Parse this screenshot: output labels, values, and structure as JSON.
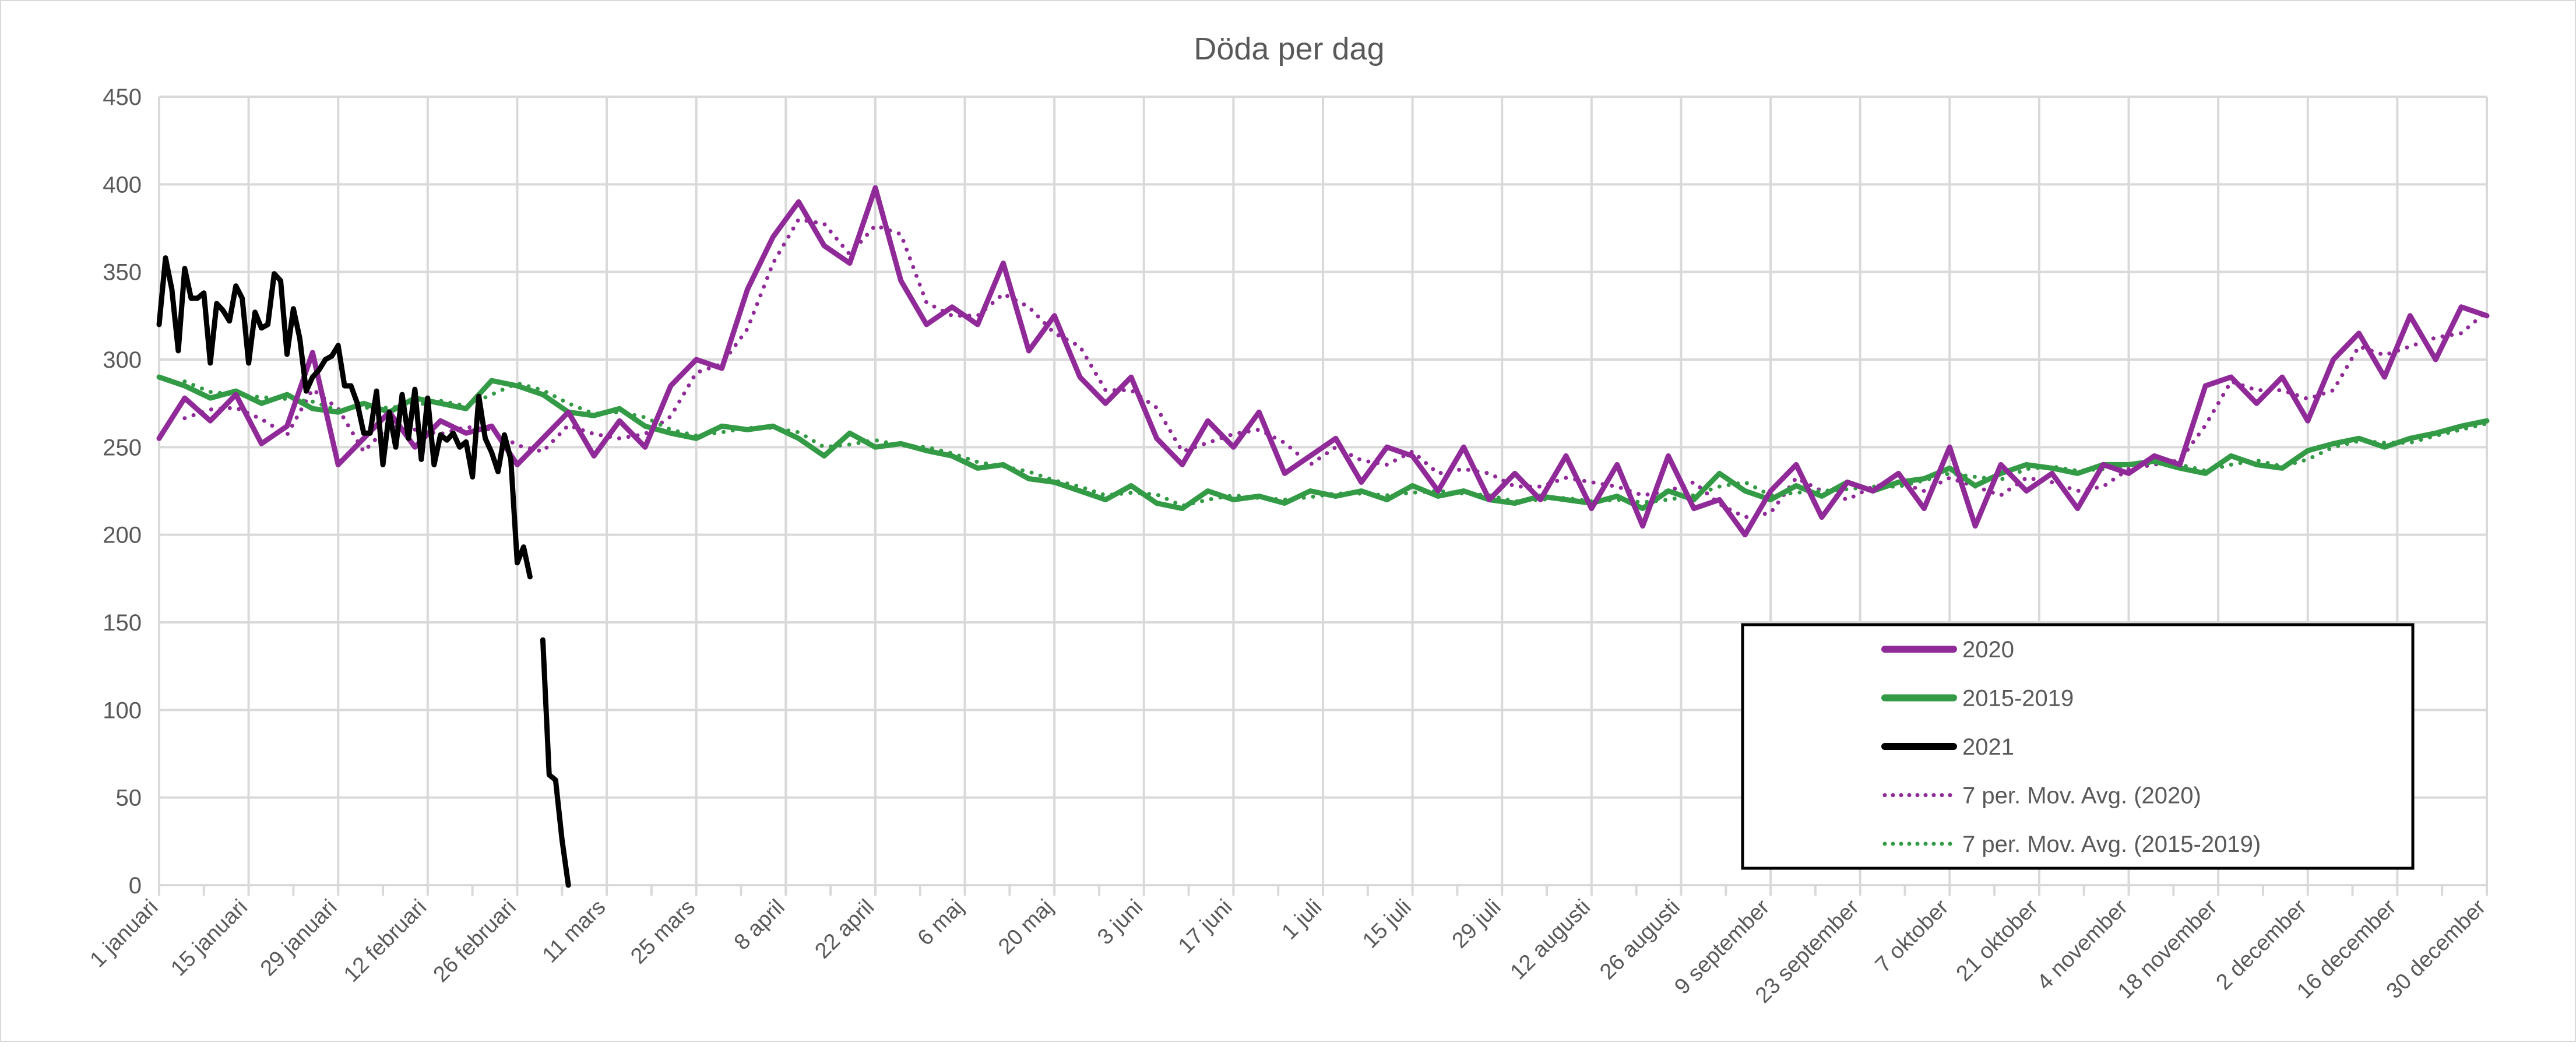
{
  "chart_data": {
    "type": "line",
    "title": "Döda per dag",
    "xlabel": "",
    "ylabel": "",
    "ylim": [
      0,
      450
    ],
    "y_ticks": [
      0,
      50,
      100,
      150,
      200,
      250,
      300,
      350,
      400,
      450
    ],
    "x_tick_labels": [
      "1 januari",
      "15 januari",
      "29 januari",
      "12 februari",
      "26 februari",
      "11 mars",
      "25 mars",
      "8 april",
      "22 april",
      "6 maj",
      "20 maj",
      "3 juni",
      "17 juni",
      "1 juli",
      "15 juli",
      "29 juli",
      "12 augusti",
      "26 augusti",
      "9 september",
      "23 september",
      "7 oktober",
      "21 oktober",
      "4 november",
      "18 november",
      "2 december",
      "16 december",
      "30 december"
    ],
    "grid": true,
    "legend_position": "bottom-right",
    "x": [
      "01-01",
      "01-05",
      "01-09",
      "01-13",
      "01-17",
      "01-21",
      "01-25",
      "01-29",
      "02-02",
      "02-06",
      "02-10",
      "02-14",
      "02-18",
      "02-22",
      "02-26",
      "03-01",
      "03-05",
      "03-09",
      "03-13",
      "03-17",
      "03-21",
      "03-25",
      "03-29",
      "04-02",
      "04-06",
      "04-10",
      "04-14",
      "04-18",
      "04-22",
      "04-26",
      "04-30",
      "05-04",
      "05-08",
      "05-12",
      "05-16",
      "05-20",
      "05-24",
      "05-28",
      "06-01",
      "06-05",
      "06-09",
      "06-13",
      "06-17",
      "06-21",
      "06-25",
      "06-29",
      "07-03",
      "07-07",
      "07-11",
      "07-15",
      "07-19",
      "07-23",
      "07-27",
      "07-31",
      "08-04",
      "08-08",
      "08-12",
      "08-16",
      "08-20",
      "08-24",
      "08-28",
      "09-01",
      "09-05",
      "09-09",
      "09-13",
      "09-17",
      "09-21",
      "09-25",
      "09-29",
      "10-03",
      "10-07",
      "10-11",
      "10-15",
      "10-19",
      "10-23",
      "10-27",
      "10-31",
      "11-04",
      "11-08",
      "11-12",
      "11-16",
      "11-20",
      "11-24",
      "11-28",
      "12-02",
      "12-06",
      "12-10",
      "12-14",
      "12-18",
      "12-22",
      "12-26",
      "12-30"
    ],
    "series": [
      {
        "name": "2020",
        "color": "#912a99",
        "style": "solid",
        "values": [
          255,
          278,
          265,
          280,
          252,
          262,
          304,
          240,
          255,
          270,
          250,
          265,
          258,
          262,
          240,
          255,
          270,
          245,
          265,
          250,
          285,
          300,
          295,
          340,
          370,
          390,
          365,
          355,
          398,
          345,
          320,
          330,
          320,
          355,
          305,
          325,
          290,
          275,
          290,
          255,
          240,
          265,
          250,
          270,
          235,
          245,
          255,
          230,
          250,
          245,
          225,
          250,
          220,
          235,
          220,
          245,
          215,
          240,
          205,
          245,
          215,
          220,
          200,
          225,
          240,
          210,
          230,
          225,
          235,
          215,
          250,
          205,
          240,
          225,
          235,
          215,
          240,
          235,
          245,
          240,
          285,
          290,
          275,
          290,
          265,
          300,
          315,
          290,
          325,
          300,
          330,
          325
        ]
      },
      {
        "name": "2015-2019",
        "color": "#339a45",
        "style": "solid",
        "values": [
          290,
          285,
          278,
          282,
          275,
          280,
          272,
          270,
          275,
          270,
          278,
          275,
          272,
          288,
          285,
          280,
          270,
          268,
          272,
          262,
          258,
          255,
          262,
          260,
          262,
          255,
          245,
          258,
          250,
          252,
          248,
          245,
          238,
          240,
          232,
          230,
          225,
          220,
          228,
          218,
          215,
          225,
          220,
          222,
          218,
          225,
          222,
          225,
          220,
          228,
          222,
          225,
          220,
          218,
          222,
          220,
          218,
          222,
          215,
          225,
          220,
          235,
          225,
          220,
          228,
          222,
          230,
          225,
          230,
          232,
          238,
          228,
          235,
          240,
          238,
          235,
          240,
          240,
          242,
          238,
          235,
          245,
          240,
          238,
          248,
          252,
          255,
          250,
          255,
          258,
          262,
          265
        ]
      },
      {
        "name": "2021",
        "color": "#000000",
        "style": "solid",
        "x": [
          "01-01",
          "01-02",
          "01-03",
          "01-04",
          "01-05",
          "01-06",
          "01-07",
          "01-08",
          "01-09",
          "01-10",
          "01-11",
          "01-12",
          "01-13",
          "01-14",
          "01-15",
          "01-16",
          "01-17",
          "01-18",
          "01-19",
          "01-20",
          "01-21",
          "01-22",
          "01-23",
          "01-24",
          "01-25",
          "01-26",
          "01-27",
          "01-28",
          "01-29",
          "01-30",
          "01-31",
          "02-01",
          "02-02",
          "02-03",
          "02-04",
          "02-05",
          "02-06",
          "02-07",
          "02-08",
          "02-09",
          "02-10",
          "02-11",
          "02-12",
          "02-13",
          "02-14",
          "02-15",
          "02-16",
          "02-17",
          "02-18",
          "02-19",
          "02-20",
          "02-21",
          "02-22",
          "02-23",
          "02-24",
          "02-25",
          "02-26",
          "02-27",
          "02-28",
          "03-01",
          "03-02",
          "03-03",
          "03-04",
          "03-05",
          "03-06"
        ],
        "values": [
          320,
          358,
          340,
          305,
          352,
          335,
          335,
          338,
          298,
          332,
          328,
          322,
          342,
          335,
          298,
          327,
          318,
          320,
          349,
          345,
          303,
          329,
          312,
          282,
          290,
          294,
          300,
          302,
          308,
          285,
          285,
          275,
          258,
          258,
          282,
          240,
          270,
          250,
          280,
          255,
          283,
          243,
          278,
          240,
          257,
          254,
          258,
          250,
          253,
          233,
          279,
          255,
          247,
          236,
          257,
          243,
          184,
          193,
          176,
          null,
          140,
          63,
          60,
          26,
          0
        ]
      },
      {
        "name": "7 per. Mov. Avg. (2020)",
        "color": "#912a99",
        "style": "dotted",
        "moving_average_of": "2020",
        "period": 7
      },
      {
        "name": "7 per. Mov. Avg. (2015-2019)",
        "color": "#339a45",
        "style": "dotted",
        "moving_average_of": "2015-2019",
        "period": 7
      }
    ]
  }
}
